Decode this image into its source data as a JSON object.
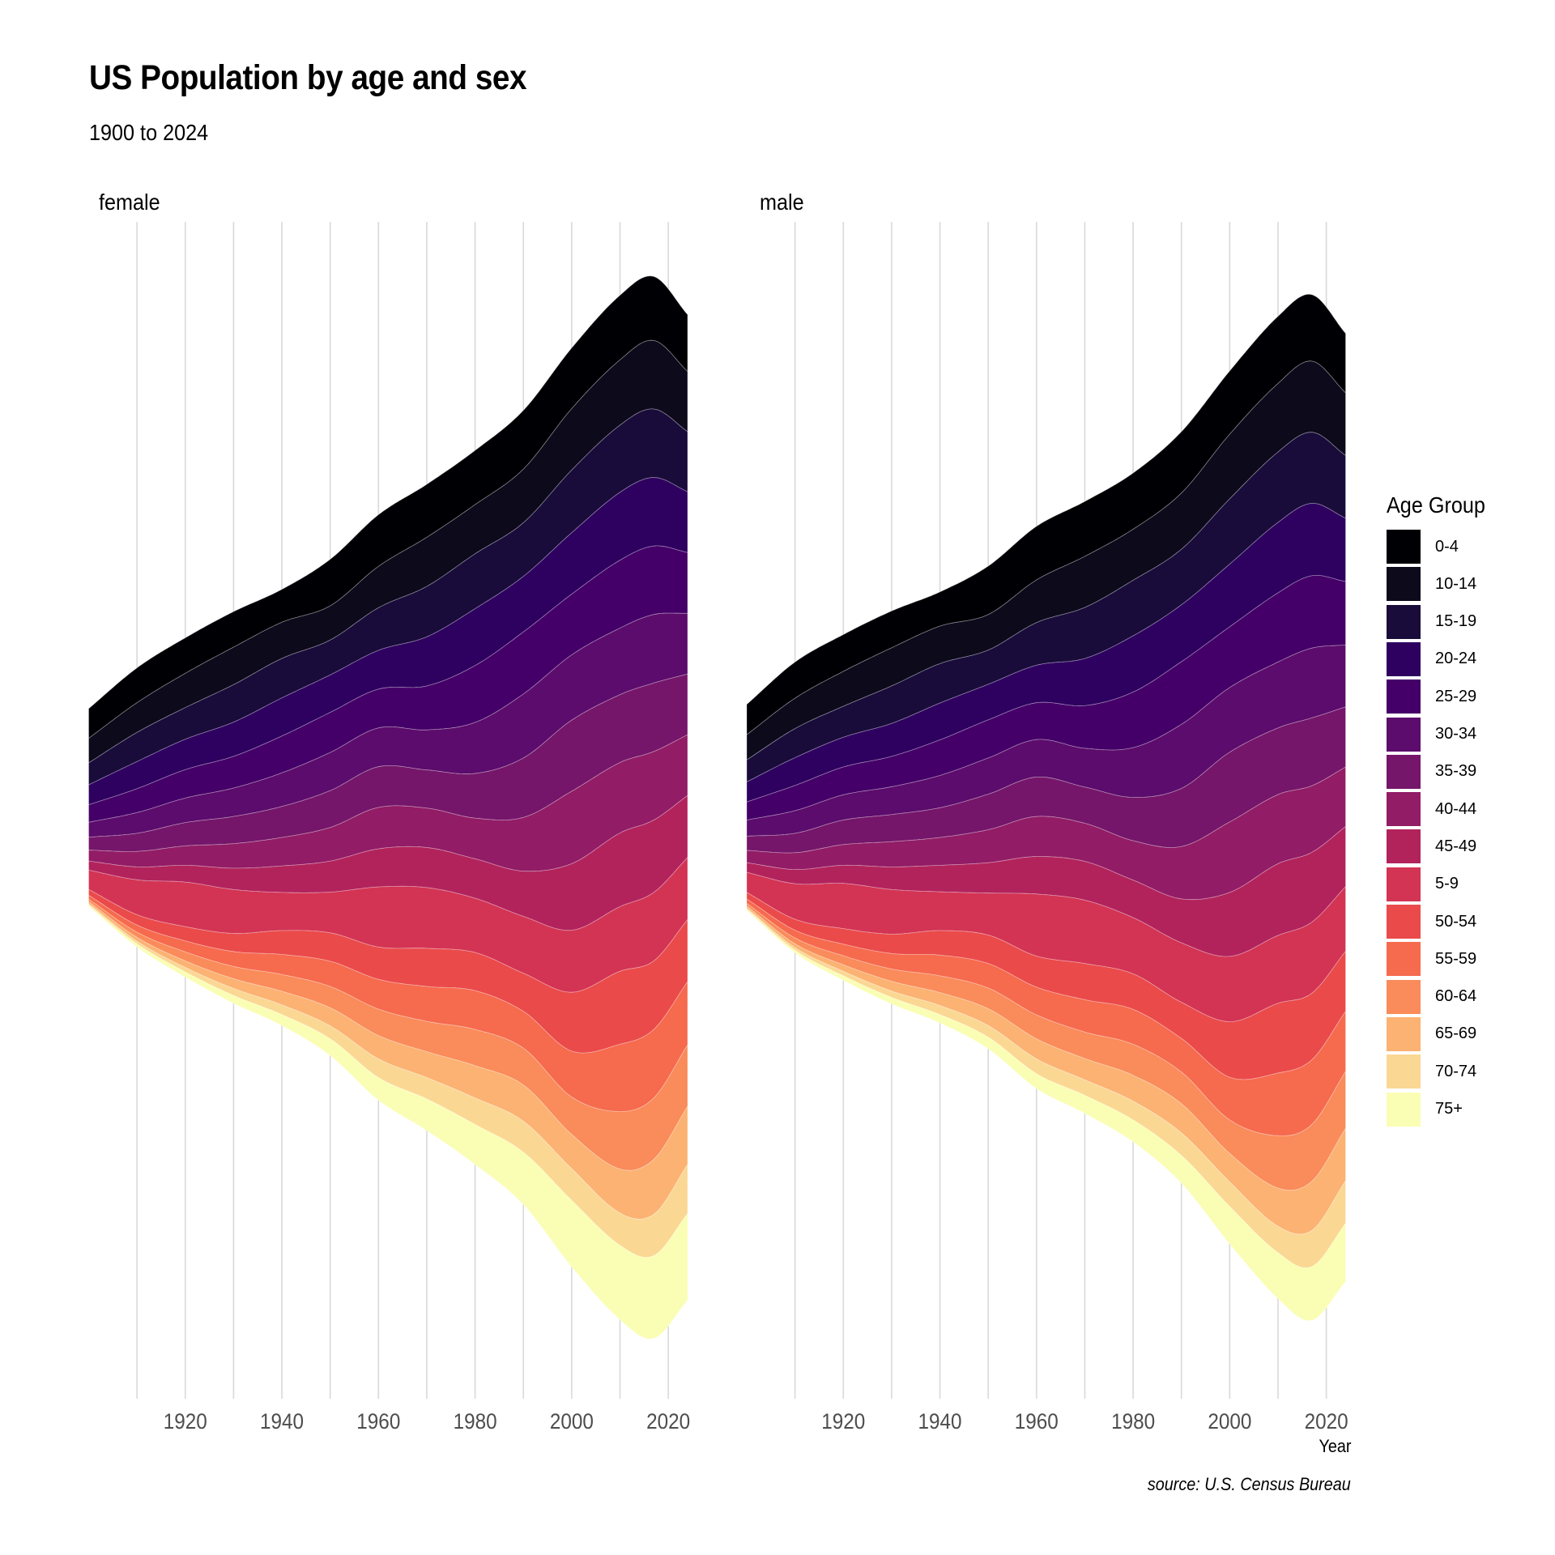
{
  "chart_data": {
    "type": "area",
    "subtype": "streamgraph-mirror",
    "title": "US Population by age and sex",
    "subtitle": "1900 to 2024",
    "xlabel": "Year",
    "ylabel": "",
    "caption": "source: U.S. Census Bureau",
    "x_ticks": [
      1920,
      1940,
      1960,
      1980,
      2000,
      2020
    ],
    "x_range": [
      1900,
      2024
    ],
    "grid": "vertical major and minor lines every 10 years",
    "legend": {
      "title": "Age Group",
      "position": "right",
      "entries": [
        "0-4",
        "10-14",
        "15-19",
        "20-24",
        "25-29",
        "30-34",
        "35-39",
        "40-44",
        "45-49",
        "5-9",
        "50-54",
        "55-59",
        "60-64",
        "65-69",
        "70-74",
        "75+"
      ],
      "colors": [
        "#000004",
        "#0d0a1c",
        "#190c3a",
        "#2e0060",
        "#440068",
        "#5c0c6c",
        "#75166a",
        "#921c66",
        "#b2235c",
        "#d33454",
        "#ea4a4a",
        "#f66a4e",
        "#fa8b5a",
        "#fbb272",
        "#fbd794",
        "#fafeb4"
      ]
    },
    "units": "millions of people (smoothed stream values, read from chart)",
    "x": [
      1900,
      1910,
      1920,
      1930,
      1940,
      1950,
      1960,
      1970,
      1980,
      1990,
      2000,
      2010,
      2017,
      2024
    ],
    "panels": [
      {
        "name": "female",
        "series": [
          {
            "name": "0-4",
            "values": [
              4.6,
              5.4,
              5.5,
              5.5,
              5.1,
              7.2,
              8.0,
              8.2,
              8.4,
              9.1,
              9.4,
              10.0,
              9.9,
              8.8
            ]
          },
          {
            "name": "10-14",
            "values": [
              3.8,
              4.6,
              5.3,
              5.8,
              5.6,
              5.3,
              6.4,
              7.6,
              7.6,
              8.3,
              9.5,
              10.1,
              10.6,
              9.3
            ]
          },
          {
            "name": "15-19",
            "values": [
              3.4,
              4.5,
              4.9,
              5.8,
              6.1,
              5.4,
              6.6,
              7.8,
              8.5,
              8.3,
              9.7,
              10.4,
              10.6,
              9.3
            ]
          },
          {
            "name": "20-24",
            "values": [
              3.1,
              4.2,
              4.7,
              5.3,
              5.9,
              5.8,
              6.0,
              7.6,
              8.8,
              8.6,
              9.5,
              10.5,
              10.6,
              9.4
            ]
          },
          {
            "name": "25-29",
            "values": [
              2.7,
              3.7,
              4.4,
              4.9,
              5.7,
              6.2,
              6.0,
              6.8,
              8.8,
              9.6,
              9.4,
              10.5,
              10.6,
              9.4
            ]
          },
          {
            "name": "30-34",
            "values": [
              2.3,
              3.2,
              3.8,
              4.4,
              5.2,
              5.9,
              6.0,
              6.2,
              7.9,
              9.9,
              10.1,
              10.3,
              10.6,
              9.4
            ]
          },
          {
            "name": "35-39",
            "values": [
              2.0,
              2.8,
              3.6,
              4.2,
              4.8,
              5.7,
              6.3,
              5.9,
              6.9,
              9.2,
              11.0,
              10.5,
              10.6,
              9.4
            ]
          },
          {
            "name": "40-44",
            "values": [
              1.7,
              2.4,
              3.0,
              3.8,
              4.4,
              5.2,
              6.4,
              6.1,
              6.3,
              8.3,
              11.2,
              10.9,
              10.6,
              9.4
            ]
          },
          {
            "name": "45-49",
            "values": [
              1.4,
              2.0,
              2.6,
              3.3,
              4.1,
              4.8,
              5.9,
              6.2,
              6.1,
              7.0,
              10.3,
              11.4,
              11.2,
              9.6
            ]
          },
          {
            "name": "5-9",
            "values": [
              3.0,
              5.4,
              6.9,
              6.8,
              5.9,
              6.3,
              9.3,
              9.4,
              8.4,
              8.8,
              9.6,
              10.0,
              10.6,
              9.6
            ]
          },
          {
            "name": "50-54",
            "values": [
              0.9,
              1.6,
              2.2,
              2.8,
              3.7,
              4.4,
              5.0,
              5.9,
              5.9,
              5.9,
              9.1,
              11.3,
              10.6,
              9.6
            ]
          },
          {
            "name": "55-59",
            "values": [
              0.6,
              1.1,
              1.7,
              2.3,
              3.1,
              3.9,
              4.6,
              5.4,
              6.0,
              5.7,
              7.1,
              10.4,
              10.6,
              9.8
            ]
          },
          {
            "name": "60-64",
            "values": [
              0.4,
              0.8,
              1.4,
              1.9,
              2.6,
              3.3,
              4.1,
              4.7,
              5.6,
              5.7,
              5.8,
              8.9,
              9.5,
              9.5
            ]
          },
          {
            "name": "65-69",
            "values": [
              0.3,
              0.6,
              1.0,
              1.5,
              2.1,
              2.8,
              3.6,
              4.0,
              5.0,
              5.6,
              5.3,
              6.8,
              8.5,
              9.0
            ]
          },
          {
            "name": "70-74",
            "values": [
              0.2,
              0.4,
              0.7,
              1.1,
              1.5,
              2.0,
              2.9,
              3.3,
              4.1,
              4.8,
              4.9,
              5.0,
              6.4,
              7.6
            ]
          },
          {
            "name": "75+",
            "values": [
              0.2,
              0.5,
              0.8,
              1.2,
              1.7,
              2.6,
              3.5,
              4.9,
              6.2,
              8.1,
              10.3,
              11.5,
              12.8,
              13.4
            ]
          }
        ]
      },
      {
        "name": "male",
        "series": [
          {
            "name": "0-4",
            "values": [
              4.7,
              5.6,
              5.7,
              5.7,
              5.3,
              7.5,
              8.3,
              8.5,
              8.7,
              9.5,
              9.8,
              10.4,
              10.3,
              9.2
            ]
          },
          {
            "name": "10-14",
            "values": [
              3.9,
              4.7,
              5.4,
              5.9,
              5.8,
              5.5,
              6.6,
              7.9,
              7.9,
              8.7,
              10.0,
              10.6,
              11.0,
              9.7
            ]
          },
          {
            "name": "15-19",
            "values": [
              3.4,
              4.5,
              4.8,
              5.8,
              6.1,
              5.3,
              6.6,
              7.9,
              8.6,
              8.6,
              10.1,
              10.9,
              11.0,
              9.7
            ]
          },
          {
            "name": "20-24",
            "values": [
              3.1,
              4.3,
              4.6,
              5.1,
              5.7,
              5.5,
              5.8,
              7.3,
              8.7,
              8.8,
              9.7,
              10.9,
              11.2,
              9.8
            ]
          },
          {
            "name": "25-29",
            "values": [
              2.8,
              3.9,
              4.3,
              4.7,
              5.5,
              5.9,
              5.7,
              6.6,
              8.6,
              9.7,
              9.4,
              10.7,
              11.2,
              9.8
            ]
          },
          {
            "name": "30-34",
            "values": [
              2.5,
              3.5,
              3.9,
              4.3,
              5.0,
              5.6,
              5.8,
              6.0,
              7.7,
              9.9,
              10.0,
              10.2,
              10.8,
              9.6
            ]
          },
          {
            "name": "35-39",
            "values": [
              2.2,
              3.0,
              3.8,
              4.2,
              4.6,
              5.5,
              6.1,
              5.6,
              6.7,
              9.0,
              10.8,
              10.3,
              10.5,
              9.3
            ]
          },
          {
            "name": "40-44",
            "values": [
              1.9,
              2.6,
              3.2,
              3.9,
              4.3,
              5.1,
              6.2,
              5.9,
              6.1,
              8.1,
              10.9,
              10.7,
              10.3,
              9.2
            ]
          },
          {
            "name": "45-49",
            "values": [
              1.5,
              2.2,
              2.8,
              3.5,
              4.1,
              4.7,
              5.8,
              6.0,
              5.8,
              6.8,
              9.9,
              11.1,
              10.8,
              9.3
            ]
          },
          {
            "name": "5-9",
            "values": [
              3.1,
              5.5,
              7.0,
              6.9,
              6.0,
              6.5,
              9.6,
              9.8,
              8.7,
              9.2,
              10.1,
              10.5,
              11.0,
              10.0
            ]
          },
          {
            "name": "50-54",
            "values": [
              1.0,
              1.7,
              2.4,
              3.0,
              3.8,
              4.4,
              4.8,
              5.6,
              5.5,
              5.6,
              8.6,
              10.8,
              10.3,
              9.3
            ]
          },
          {
            "name": "55-59",
            "values": [
              0.7,
              1.2,
              1.8,
              2.4,
              3.2,
              3.8,
              4.3,
              5.0,
              5.4,
              5.2,
              6.6,
              9.7,
              10.0,
              9.3
            ]
          },
          {
            "name": "60-64",
            "values": [
              0.4,
              0.9,
              1.4,
              1.9,
              2.6,
              3.2,
              3.7,
              4.1,
              4.8,
              4.9,
              5.2,
              8.1,
              8.8,
              8.8
            ]
          },
          {
            "name": "65-69",
            "values": [
              0.3,
              0.6,
              1.0,
              1.5,
              2.0,
              2.6,
              3.1,
              3.3,
              4.0,
              4.5,
              4.4,
              5.9,
              7.6,
              8.1
            ]
          },
          {
            "name": "70-74",
            "values": [
              0.2,
              0.4,
              0.7,
              1.0,
              1.4,
              1.8,
              2.3,
              2.4,
              2.9,
              3.5,
              3.8,
              4.1,
              5.6,
              6.6
            ]
          },
          {
            "name": "75+",
            "values": [
              0.2,
              0.4,
              0.7,
              1.0,
              1.3,
              1.8,
              2.3,
              2.8,
              3.4,
              4.3,
              5.8,
              7.1,
              8.3,
              9.0
            ]
          }
        ]
      }
    ]
  }
}
